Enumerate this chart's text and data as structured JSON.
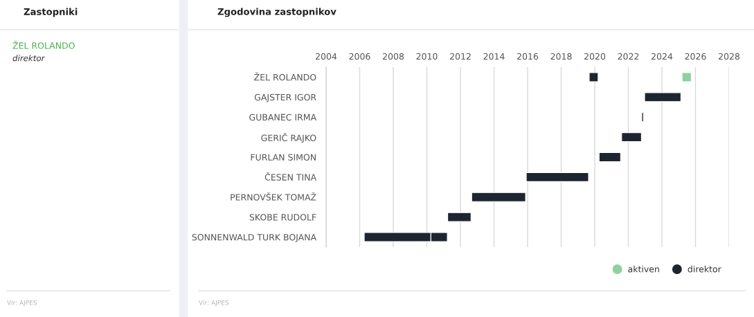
{
  "chart_data": [
    {
      "type": "other",
      "title": "Zastopniki",
      "annotations": [
        "ŽEL ROLANDO",
        "direktor",
        "Vir: AJPES"
      ]
    },
    {
      "type": "bar",
      "orientation": "horizontal",
      "title": "Zgodovina zastopnikov",
      "categories": [
        "ŽEL ROLANDO",
        "GAJSTER IGOR",
        "GUBANEC IRMA",
        "GERIČ RAJKO",
        "FURLAN SIMON",
        "ČESEN TINA",
        "PERNOVŠEK TOMAŽ",
        "SKOBE RUDOLF",
        "SONNENWALD TURK BOJANA"
      ],
      "series": [
        {
          "name": "aktiven",
          "color": "#8fd19e",
          "base": [
            2025.2,
            null,
            null,
            null,
            null,
            null,
            null,
            null,
            null
          ],
          "values": [
            0.55,
            null,
            null,
            null,
            null,
            null,
            null,
            null,
            null
          ]
        },
        {
          "name": "direktor",
          "color": "#1c2530",
          "base": [
            2019.67,
            2022.97,
            2022.8,
            2021.6,
            2020.26,
            2015.92,
            2012.67,
            2011.24,
            2006.27
          ],
          "values": [
            0.53,
            2.16,
            0.1,
            1.18,
            1.28,
            3.71,
            3.21,
            1.39,
            3.97
          ]
        },
        {
          "color": "#1c2530",
          "base": [
            null,
            null,
            null,
            null,
            null,
            null,
            null,
            null,
            2010.24
          ],
          "values": [
            null,
            null,
            null,
            null,
            null,
            null,
            null,
            null,
            0.98
          ]
        }
      ],
      "xlim": [
        2004,
        2028
      ],
      "xticks": [
        2004,
        2006,
        2008,
        2010,
        2012,
        2014,
        2016,
        2018,
        2020,
        2022,
        2024,
        2026,
        2028
      ],
      "grid": "x",
      "legend": "bottom right",
      "annotations": [
        "Vir: AJPES"
      ]
    }
  ]
}
